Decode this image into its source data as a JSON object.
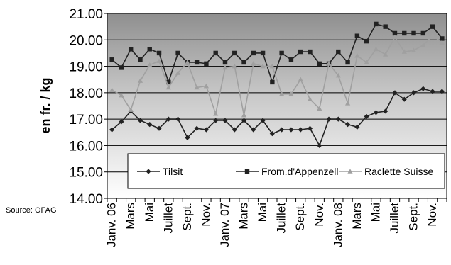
{
  "source_label": "Source: OFAG",
  "chart_data": {
    "type": "line",
    "ylabel": "en fr. / kg",
    "ylim": [
      14.0,
      21.0
    ],
    "yticks": [
      "14.00",
      "15.00",
      "16.00",
      "17.00",
      "18.00",
      "19.00",
      "20.00",
      "21.00"
    ],
    "xtick_labels": [
      "Janv. 06",
      "Mars",
      "Mai",
      "Juillet",
      "Sept.",
      "Nov.",
      "Janv. 07",
      "Mars",
      "Mai",
      "Juillet",
      "Sept.",
      "Nov.",
      "Janv. 08",
      "Mars",
      "Mai",
      "Juillet",
      "Sept.",
      "Nov."
    ],
    "grid": true,
    "legend_position": "bottom-inside",
    "background": "gradient grey to white",
    "series": [
      {
        "name": "Tilsit",
        "color": "#222222",
        "marker": "diamond",
        "values": [
          16.6,
          16.9,
          17.3,
          16.95,
          16.8,
          16.65,
          17.0,
          17.0,
          16.3,
          16.65,
          16.6,
          16.95,
          16.95,
          16.6,
          16.95,
          16.6,
          16.95,
          16.45,
          16.6,
          16.6,
          16.6,
          16.65,
          16.0,
          17.0,
          17.0,
          16.8,
          16.7,
          17.1,
          17.25,
          17.3,
          18.0,
          17.75,
          18.0,
          18.15,
          18.05,
          18.05
        ]
      },
      {
        "name": "From.d'Appenzell",
        "color": "#222222",
        "marker": "square",
        "values": [
          19.25,
          18.95,
          19.65,
          19.25,
          19.65,
          19.5,
          18.4,
          19.5,
          19.15,
          19.15,
          19.1,
          19.5,
          19.15,
          19.5,
          19.15,
          19.5,
          19.5,
          18.4,
          19.5,
          19.25,
          19.55,
          19.55,
          19.1,
          19.1,
          19.55,
          19.15,
          20.15,
          19.95,
          20.6,
          20.5,
          20.25,
          20.25,
          20.25,
          20.25,
          20.5,
          20.05
        ]
      },
      {
        "name": "Raclette Suisse",
        "color": "#a0a0a0",
        "marker": "triangle",
        "values": [
          18.1,
          17.9,
          17.35,
          18.45,
          19.05,
          19.2,
          18.2,
          18.75,
          19.15,
          18.2,
          18.25,
          17.2,
          18.95,
          19.0,
          17.15,
          19.1,
          19.0,
          19.0,
          17.95,
          17.95,
          18.5,
          17.75,
          17.4,
          19.1,
          18.65,
          17.6,
          19.4,
          19.15,
          19.65,
          19.45,
          20.1,
          19.55,
          19.6,
          19.8,
          20.15,
          19.9
        ]
      }
    ]
  }
}
